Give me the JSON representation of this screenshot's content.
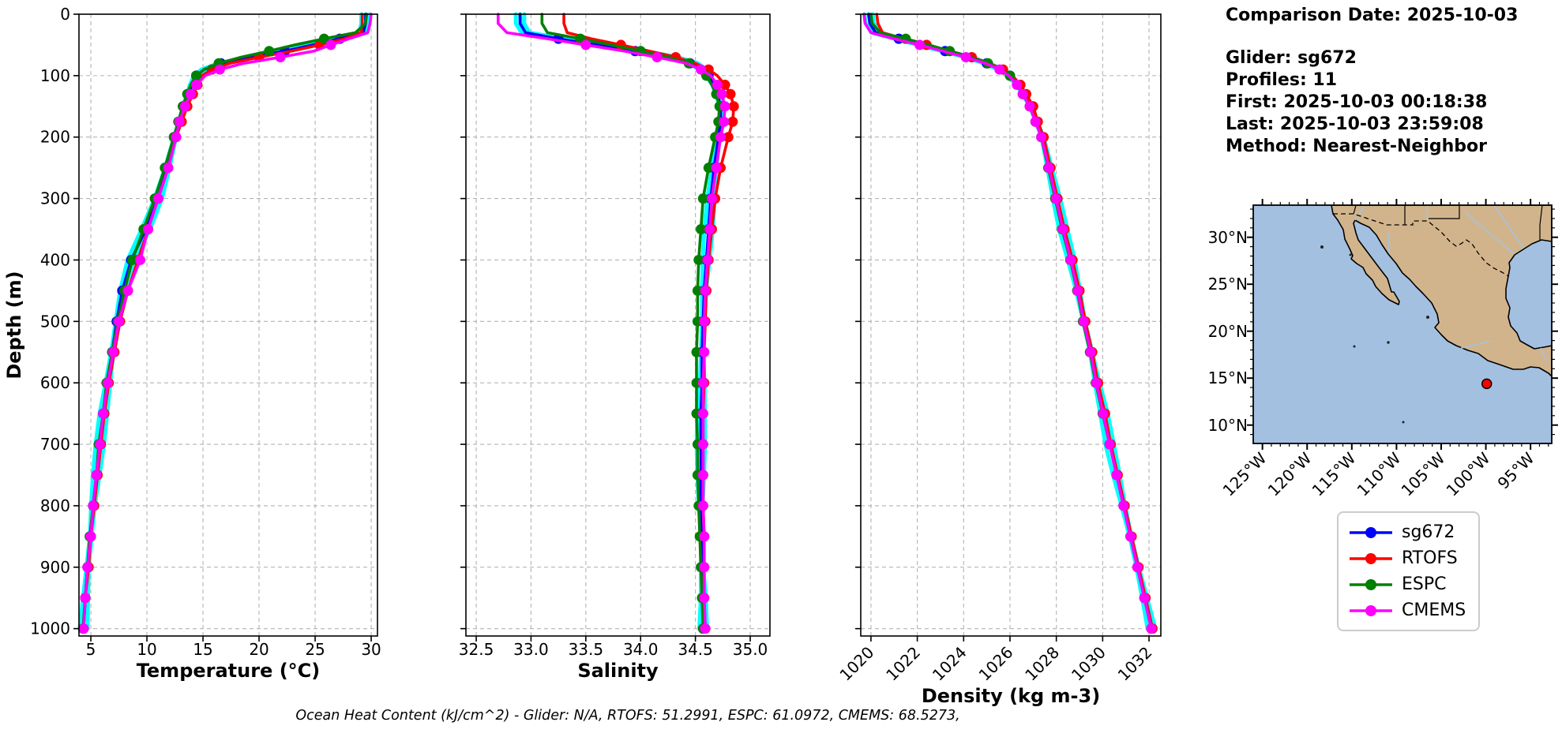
{
  "info_panel": {
    "comparison_date": "Comparison Date: 2025-10-03",
    "glider": "Glider: sg672",
    "profiles": "Profiles: 11",
    "first": "First: 2025-10-03 00:18:38",
    "last": "Last: 2025-10-03 23:59:08",
    "method": "Method: Nearest-Neighbor"
  },
  "footer_text": "Ocean Heat Content (kJ/cm^2) - Glider: N/A,  RTOFS: 51.2991,  ESPC: 61.0972,  CMEMS: 68.5273,",
  "legend": {
    "entries": [
      {
        "label": "sg672",
        "color": "#0000ff"
      },
      {
        "label": "RTOFS",
        "color": "#ff0000"
      },
      {
        "label": "ESPC",
        "color": "#008000"
      },
      {
        "label": "CMEMS",
        "color": "#ff00ff"
      }
    ]
  },
  "map": {
    "lat_labels": [
      "30°N",
      "25°N",
      "20°N",
      "15°N",
      "10°N"
    ],
    "lon_labels": [
      "125°W",
      "120°W",
      "115°W",
      "110°W",
      "105°W",
      "100°W",
      "95°W"
    ],
    "land_color": "#d2b48c",
    "ocean_color": "#a3c0e0",
    "river_color": "#a0c4ea",
    "marker_color": "#ff0000",
    "glider_position": {
      "lon_w": 99.9,
      "lat_n": 14.4
    }
  },
  "chart_data": [
    {
      "type": "line",
      "profile_orientation": "depth-vertical",
      "xlabel": "Temperature (°C)",
      "ylabel": "Depth (m)",
      "xlim": [
        3.94,
        30.56
      ],
      "ylim": [
        0,
        1012
      ],
      "grid": true,
      "xticks": [
        {
          "v": 5,
          "label": "5"
        },
        {
          "v": 10,
          "label": "10"
        },
        {
          "v": 15,
          "label": "15"
        },
        {
          "v": 20,
          "label": "20"
        },
        {
          "v": 25,
          "label": "25"
        },
        {
          "v": 30,
          "label": "30"
        }
      ],
      "yticks": [
        0,
        100,
        200,
        300,
        400,
        500,
        600,
        700,
        800,
        900,
        1000
      ],
      "depths": [
        0,
        15,
        30,
        40,
        50,
        60,
        70,
        80,
        90,
        100,
        115,
        130,
        150,
        175,
        200,
        250,
        300,
        350,
        400,
        450,
        500,
        550,
        600,
        650,
        700,
        750,
        800,
        850,
        900,
        950,
        1000
      ],
      "raw_profiles": {
        "name": "glider raw profiles",
        "color": "#00ffff"
      },
      "series": [
        {
          "name": "sg672",
          "color": "#0000ff",
          "values": [
            29.5,
            29.5,
            29.3,
            27.2,
            24.8,
            22.3,
            19.3,
            16.6,
            15.1,
            14.4,
            14.0,
            13.7,
            13.3,
            12.9,
            12.5,
            11.8,
            11.0,
            9.9,
            8.6,
            7.8,
            7.3,
            6.9,
            6.5,
            6.1,
            5.8,
            5.5,
            5.2,
            5.0,
            4.7,
            4.5,
            4.35
          ]
        },
        {
          "name": "RTOFS",
          "color": "#ff0000",
          "values": [
            29.2,
            29.2,
            29.1,
            27.6,
            25.4,
            22.9,
            20.0,
            17.4,
            15.8,
            14.9,
            14.5,
            14.1,
            13.6,
            13.1,
            12.6,
            11.9,
            11.0,
            10.1,
            9.2,
            8.3,
            7.6,
            7.1,
            6.6,
            6.2,
            5.9,
            5.6,
            5.3,
            5.0,
            4.8,
            4.5,
            4.35
          ]
        },
        {
          "name": "ESPC",
          "color": "#008000",
          "values": [
            29.6,
            29.5,
            28.6,
            25.8,
            23.2,
            20.9,
            18.4,
            16.4,
            15.1,
            14.4,
            13.9,
            13.6,
            13.2,
            12.8,
            12.4,
            11.6,
            10.7,
            9.7,
            8.7,
            8.0,
            7.4,
            6.9,
            6.4,
            6.1,
            5.7,
            5.5,
            5.2,
            4.9,
            4.7,
            4.5,
            4.3
          ]
        },
        {
          "name": "CMEMS",
          "color": "#ff00ff",
          "values": [
            30.0,
            29.9,
            29.7,
            28.0,
            26.4,
            24.9,
            21.9,
            18.6,
            16.5,
            15.2,
            14.4,
            13.9,
            13.4,
            12.9,
            12.6,
            11.9,
            11.0,
            10.1,
            9.4,
            8.3,
            7.5,
            7.0,
            6.5,
            6.1,
            5.8,
            5.5,
            5.2,
            5.0,
            4.7,
            4.5,
            4.35
          ]
        }
      ]
    },
    {
      "type": "line",
      "profile_orientation": "depth-vertical",
      "xlabel": "Salinity",
      "ylabel": "",
      "xlim": [
        32.406,
        35.18
      ],
      "ylim": [
        0,
        1012
      ],
      "grid": true,
      "xticks": [
        {
          "v": 32.5,
          "label": "32.5"
        },
        {
          "v": 33.0,
          "label": "33.0"
        },
        {
          "v": 33.5,
          "label": "33.5"
        },
        {
          "v": 34.0,
          "label": "34.0"
        },
        {
          "v": 34.5,
          "label": "34.5"
        },
        {
          "v": 35.0,
          "label": "35.0"
        }
      ],
      "yticks": [
        0,
        100,
        200,
        300,
        400,
        500,
        600,
        700,
        800,
        900,
        1000
      ],
      "depths": [
        0,
        15,
        30,
        40,
        50,
        60,
        70,
        80,
        90,
        100,
        115,
        130,
        150,
        175,
        200,
        250,
        300,
        350,
        400,
        450,
        500,
        550,
        600,
        650,
        700,
        750,
        800,
        850,
        900,
        950,
        1000
      ],
      "raw_profiles": {
        "name": "glider raw profiles",
        "color": "#00ffff"
      },
      "series": [
        {
          "name": "sg672",
          "color": "#0000ff",
          "values": [
            32.9,
            32.9,
            32.95,
            33.25,
            33.6,
            33.95,
            34.25,
            34.45,
            34.55,
            34.62,
            34.67,
            34.7,
            34.73,
            34.73,
            34.71,
            34.67,
            34.64,
            34.62,
            34.6,
            34.58,
            34.57,
            34.56,
            34.56,
            34.55,
            34.55,
            34.55,
            34.55,
            34.56,
            34.56,
            34.57,
            34.57
          ]
        },
        {
          "name": "RTOFS",
          "color": "#ff0000",
          "values": [
            33.3,
            33.3,
            33.33,
            33.55,
            33.82,
            34.08,
            34.32,
            34.5,
            34.62,
            34.7,
            34.77,
            34.82,
            34.85,
            34.84,
            34.8,
            34.73,
            34.68,
            34.65,
            34.62,
            34.6,
            34.59,
            34.58,
            34.58,
            34.57,
            34.57,
            34.57,
            34.57,
            34.58,
            34.58,
            34.58,
            34.59
          ]
        },
        {
          "name": "ESPC",
          "color": "#008000",
          "values": [
            33.1,
            33.1,
            33.15,
            33.45,
            33.73,
            34.0,
            34.25,
            34.44,
            34.54,
            34.6,
            34.65,
            34.69,
            34.72,
            34.71,
            34.68,
            34.62,
            34.57,
            34.55,
            34.53,
            34.52,
            34.52,
            34.51,
            34.51,
            34.51,
            34.52,
            34.52,
            34.53,
            34.54,
            34.55,
            34.56,
            34.57
          ]
        },
        {
          "name": "CMEMS",
          "color": "#ff00ff",
          "values": [
            32.7,
            32.7,
            32.78,
            33.15,
            33.5,
            33.85,
            34.15,
            34.42,
            34.55,
            34.64,
            34.7,
            34.74,
            34.77,
            34.76,
            34.73,
            34.69,
            34.65,
            34.63,
            34.61,
            34.59,
            34.58,
            34.58,
            34.57,
            34.57,
            34.57,
            34.57,
            34.57,
            34.58,
            34.58,
            34.58,
            34.59
          ]
        }
      ]
    },
    {
      "type": "line",
      "profile_orientation": "depth-vertical",
      "xlabel": "Density (kg m-3)",
      "ylabel": "",
      "xlim": [
        1019.56,
        1032.51
      ],
      "ylim": [
        0,
        1012
      ],
      "grid": true,
      "rotate_xtick_labels": 45,
      "xticks": [
        {
          "v": 1020,
          "label": "1020"
        },
        {
          "v": 1022,
          "label": "1022"
        },
        {
          "v": 1024,
          "label": "1024"
        },
        {
          "v": 1026,
          "label": "1026"
        },
        {
          "v": 1028,
          "label": "1028"
        },
        {
          "v": 1030,
          "label": "1030"
        },
        {
          "v": 1032,
          "label": "1032"
        }
      ],
      "yticks": [
        0,
        100,
        200,
        300,
        400,
        500,
        600,
        700,
        800,
        900,
        1000
      ],
      "depths": [
        0,
        15,
        30,
        40,
        50,
        60,
        70,
        80,
        90,
        100,
        115,
        130,
        150,
        175,
        200,
        250,
        300,
        350,
        400,
        450,
        500,
        550,
        600,
        650,
        700,
        750,
        800,
        850,
        900,
        950,
        1000
      ],
      "raw_profiles": {
        "name": "glider raw profiles",
        "color": "#00ffff"
      },
      "series": [
        {
          "name": "sg672",
          "color": "#0000ff",
          "values": [
            1019.9,
            1019.95,
            1020.2,
            1021.2,
            1022.2,
            1023.2,
            1024.2,
            1025.0,
            1025.6,
            1026.0,
            1026.35,
            1026.6,
            1026.9,
            1027.15,
            1027.4,
            1027.7,
            1028.0,
            1028.3,
            1028.65,
            1028.95,
            1029.2,
            1029.5,
            1029.75,
            1030.05,
            1030.3,
            1030.6,
            1030.9,
            1031.2,
            1031.5,
            1031.8,
            1032.1
          ]
        },
        {
          "name": "RTOFS",
          "color": "#ff0000",
          "values": [
            1020.25,
            1020.3,
            1020.5,
            1021.4,
            1022.4,
            1023.4,
            1024.35,
            1025.1,
            1025.7,
            1026.1,
            1026.45,
            1026.7,
            1027.0,
            1027.2,
            1027.45,
            1027.75,
            1028.05,
            1028.35,
            1028.7,
            1029.0,
            1029.25,
            1029.55,
            1029.8,
            1030.1,
            1030.35,
            1030.65,
            1030.95,
            1031.25,
            1031.55,
            1031.85,
            1032.15
          ]
        },
        {
          "name": "ESPC",
          "color": "#008000",
          "values": [
            1020.0,
            1020.05,
            1020.4,
            1021.5,
            1022.5,
            1023.4,
            1024.3,
            1025.05,
            1025.6,
            1026.0,
            1026.3,
            1026.55,
            1026.85,
            1027.1,
            1027.35,
            1027.65,
            1027.95,
            1028.25,
            1028.6,
            1028.9,
            1029.15,
            1029.45,
            1029.7,
            1030.0,
            1030.3,
            1030.6,
            1030.9,
            1031.2,
            1031.5,
            1031.8,
            1032.1
          ]
        },
        {
          "name": "CMEMS",
          "color": "#ff00ff",
          "values": [
            1019.7,
            1019.75,
            1020.0,
            1021.0,
            1022.1,
            1023.1,
            1024.1,
            1024.95,
            1025.55,
            1025.95,
            1026.3,
            1026.55,
            1026.85,
            1027.1,
            1027.35,
            1027.68,
            1027.98,
            1028.28,
            1028.62,
            1028.92,
            1029.18,
            1029.48,
            1029.72,
            1030.02,
            1030.3,
            1030.6,
            1030.9,
            1031.2,
            1031.5,
            1031.8,
            1032.1
          ]
        }
      ]
    }
  ]
}
